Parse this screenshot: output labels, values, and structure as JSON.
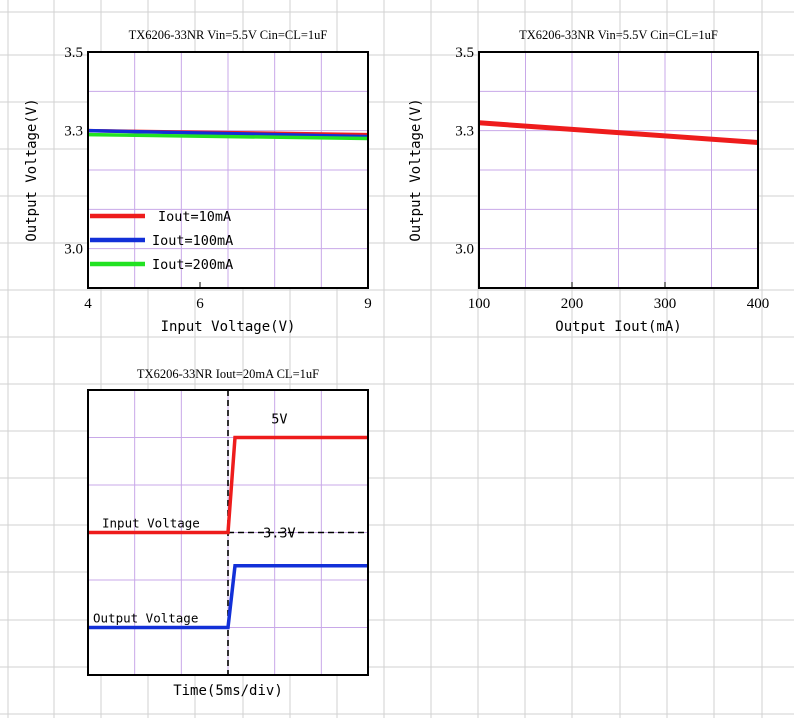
{
  "colors": {
    "red": "#ee1c1c",
    "blue": "#1230d8",
    "green": "#22e222",
    "grid": "#c8a8e8",
    "sheet_grid": "#d2d2d2",
    "frame": "#000000"
  },
  "chart_data": [
    {
      "type": "line",
      "title": "TX6206-33NR Vin=5.5V Cin=CL=1uF",
      "xlabel": "Input Voltage(V)",
      "ylabel": "Output Voltage(V)",
      "xlim": [
        4,
        9
      ],
      "ylim": [
        2.9,
        3.5
      ],
      "x_ticks": [
        "4",
        "6",
        "9"
      ],
      "x_tick_values": [
        4,
        6,
        9
      ],
      "y_ticks": [
        "3.5",
        "3.3",
        "3.0"
      ],
      "y_tick_values": [
        3.5,
        3.3,
        3.0
      ],
      "grid": true,
      "legend_position": "bottom-left",
      "series": [
        {
          "name": "Iout=10mA",
          "color": "#ee1c1c",
          "x": [
            4,
            9
          ],
          "y": [
            3.3,
            3.29
          ]
        },
        {
          "name": "Iout=100mA",
          "color": "#1230d8",
          "x": [
            4,
            9
          ],
          "y": [
            3.3,
            3.285
          ]
        },
        {
          "name": "Iout=200mA",
          "color": "#22e222",
          "x": [
            4,
            9
          ],
          "y": [
            3.29,
            3.28
          ]
        }
      ]
    },
    {
      "type": "line",
      "title": "TX6206-33NR Vin=5.5V Cin=CL=1uF",
      "xlabel": "Output Iout(mA)",
      "ylabel": "Output Voltage(V)",
      "xlim": [
        100,
        400
      ],
      "ylim": [
        2.9,
        3.5
      ],
      "x_ticks": [
        "100",
        "200",
        "300",
        "400"
      ],
      "x_tick_values": [
        100,
        200,
        300,
        400
      ],
      "y_ticks": [
        "3.5",
        "3.3",
        "3.0"
      ],
      "y_tick_values": [
        3.5,
        3.3,
        3.0
      ],
      "grid": true,
      "series": [
        {
          "color": "#ee1c1c",
          "x": [
            100,
            400
          ],
          "y": [
            3.32,
            3.27
          ]
        }
      ]
    },
    {
      "type": "line",
      "title": "TX6206-33NR Iout=20mA CL=1uF",
      "xlabel": "Time(5ms/div)",
      "grid": true,
      "xlim": [
        0,
        6
      ],
      "ylim": [
        0,
        6
      ],
      "step_time": 3,
      "annotations": [
        {
          "text": "5V",
          "x": 4.1,
          "y": 5.3
        },
        {
          "text": "3.3V",
          "x": 4.1,
          "y": 2.9
        }
      ],
      "series": [
        {
          "name": "Input Voltage",
          "color": "#ee1c1c",
          "x": [
            0,
            3,
            3.15,
            6
          ],
          "y": [
            3,
            3,
            5,
            5
          ]
        },
        {
          "name": "Output Voltage",
          "color": "#1230d8",
          "x": [
            0,
            3,
            3.15,
            6
          ],
          "y": [
            1,
            1,
            2.3,
            2.3
          ]
        }
      ]
    }
  ]
}
